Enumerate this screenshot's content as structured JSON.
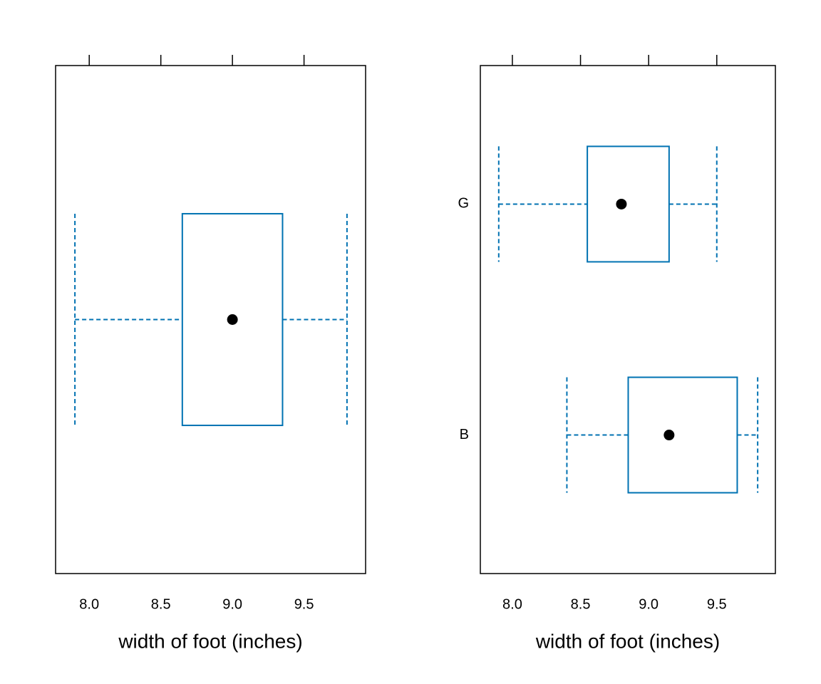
{
  "chart_data": [
    {
      "type": "box",
      "x_label": "width of foot (inches)",
      "color": "#0072b2",
      "categories": [
        null
      ],
      "min": [
        7.9
      ],
      "q1": [
        8.65
      ],
      "median": [
        9.0
      ],
      "q3": [
        9.35
      ],
      "max": [
        9.8
      ],
      "xlim": [
        7.765,
        9.93
      ],
      "xticks": [
        {
          "value": 8,
          "label": "8.0"
        },
        {
          "value": 8.5,
          "label": "8.5"
        },
        {
          "value": 9,
          "label": "9.0"
        },
        {
          "value": 9.5,
          "label": "9.5"
        }
      ]
    },
    {
      "type": "box",
      "x_label": "width of foot (inches)",
      "color": "#0072b2",
      "categories": [
        "B",
        "G"
      ],
      "min": [
        8.4,
        7.9
      ],
      "q1": [
        8.85,
        8.55
      ],
      "median": [
        9.15,
        8.8
      ],
      "q3": [
        9.65,
        9.15
      ],
      "max": [
        9.8,
        9.5
      ],
      "xlim": [
        7.765,
        9.93
      ],
      "xticks": [
        {
          "value": 8,
          "label": "8.0"
        },
        {
          "value": 8.5,
          "label": "8.5"
        },
        {
          "value": 9,
          "label": "9.0"
        },
        {
          "value": 9.5,
          "label": "9.5"
        }
      ]
    }
  ]
}
